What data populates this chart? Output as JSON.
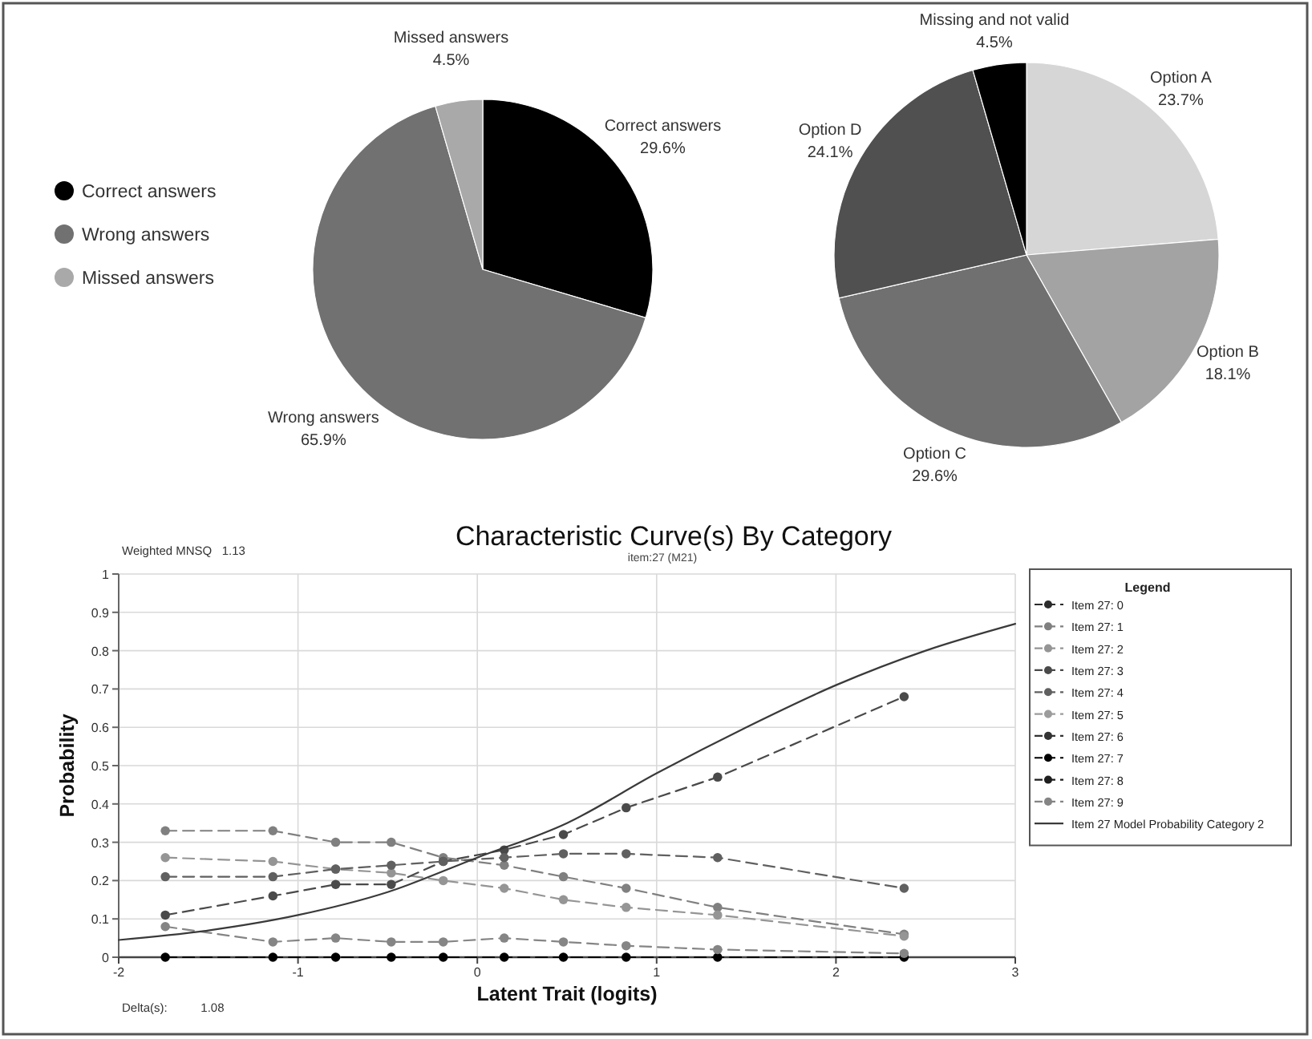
{
  "chart_data": [
    {
      "type": "pie",
      "categories": [
        "Correct answers",
        "Wrong answers",
        "Missed answers"
      ],
      "values": [
        29.6,
        65.9,
        4.5
      ],
      "colors": [
        "#000000",
        "#717171",
        "#a9a9a9"
      ],
      "value_labels": [
        "29.6%",
        "65.9%",
        "4.5%"
      ],
      "legend": "left"
    },
    {
      "type": "pie",
      "categories": [
        "Option A",
        "Option B",
        "Option C",
        "Option D",
        "Missing and not valid"
      ],
      "values": [
        23.7,
        18.1,
        29.6,
        24.1,
        4.5
      ],
      "colors": [
        "#d6d6d6",
        "#a3a3a3",
        "#707070",
        "#505050",
        "#000000"
      ],
      "value_labels": [
        "23.7%",
        "18.1%",
        "29.6%",
        "24.1%",
        "4.5%"
      ]
    },
    {
      "type": "line",
      "title": "Characteristic Curve(s) By Category",
      "subtitle": "item:27 (M21)",
      "xlabel": "Latent Trait (logits)",
      "ylabel": "Probability",
      "legend_title": "Legend",
      "annotations": [
        "Weighted MNSQ   1.13",
        "Delta(s):          1.08"
      ],
      "x": [
        -1.74,
        -1.14,
        -0.79,
        -0.48,
        -0.19,
        0.15,
        0.48,
        0.83,
        1.34,
        2.38
      ],
      "series": [
        {
          "name": "Item 27: 0",
          "color": "#2b2b2b",
          "values": [
            null,
            null,
            null,
            null,
            null,
            null,
            null,
            null,
            null,
            null
          ]
        },
        {
          "name": "Item 27: 1",
          "color": "#808080",
          "values": [
            0.33,
            0.33,
            0.3,
            0.3,
            0.26,
            0.24,
            0.21,
            0.18,
            0.13,
            0.06
          ]
        },
        {
          "name": "Item 27: 2",
          "color": "#959595",
          "values": [
            0.26,
            0.25,
            0.23,
            0.22,
            0.2,
            0.18,
            0.15,
            0.13,
            0.11,
            0.055
          ]
        },
        {
          "name": "Item 27: 3",
          "color": "#4a4a4a",
          "values": [
            0.11,
            0.16,
            0.19,
            0.19,
            0.25,
            0.28,
            0.32,
            0.39,
            0.47,
            0.68
          ]
        },
        {
          "name": "Item 27: 4",
          "color": "#606060",
          "values": [
            0.21,
            0.21,
            0.23,
            0.24,
            0.25,
            0.26,
            0.27,
            0.27,
            0.26,
            0.18
          ]
        },
        {
          "name": "Item 27: 5",
          "color": "#9c9c9c",
          "values": [
            null,
            null,
            null,
            null,
            null,
            null,
            null,
            null,
            null,
            null
          ]
        },
        {
          "name": "Item 27: 6",
          "color": "#333333",
          "values": [
            null,
            null,
            null,
            null,
            null,
            null,
            null,
            null,
            null,
            null
          ]
        },
        {
          "name": "Item 27: 7",
          "color": "#000000",
          "values": [
            0,
            0,
            0,
            0,
            0,
            0,
            0,
            0,
            0,
            0
          ]
        },
        {
          "name": "Item 27: 8",
          "color": "#1e1e1e",
          "values": [
            null,
            null,
            null,
            null,
            null,
            null,
            null,
            null,
            null,
            null
          ]
        },
        {
          "name": "Item 27: 9",
          "color": "#858585",
          "values": [
            0.08,
            0.04,
            0.05,
            0.04,
            0.04,
            0.05,
            0.04,
            0.03,
            0.02,
            0.01
          ]
        },
        {
          "name": "Item 27 Model Probability Category 2",
          "color": "#3a3a3a",
          "x": [
            -2,
            -1.5,
            -1,
            -0.5,
            0,
            0.5,
            1,
            1.5,
            2,
            2.5,
            3
          ],
          "values": [
            0.045,
            0.07,
            0.11,
            0.17,
            0.26,
            0.35,
            0.48,
            0.6,
            0.71,
            0.8,
            0.87
          ],
          "marker": "none",
          "line_style": "solid"
        }
      ],
      "xlim": [
        -2,
        3
      ],
      "ylim": [
        0,
        1
      ],
      "xticks": [
        -2,
        -1,
        0,
        1,
        2,
        3
      ],
      "yticks": [
        0,
        0.1,
        0.2,
        0.3,
        0.4,
        0.5,
        0.6,
        0.7,
        0.8,
        0.9,
        1
      ],
      "grid": true,
      "legend": "right",
      "marker": "circle",
      "line_style": "dashed"
    }
  ]
}
